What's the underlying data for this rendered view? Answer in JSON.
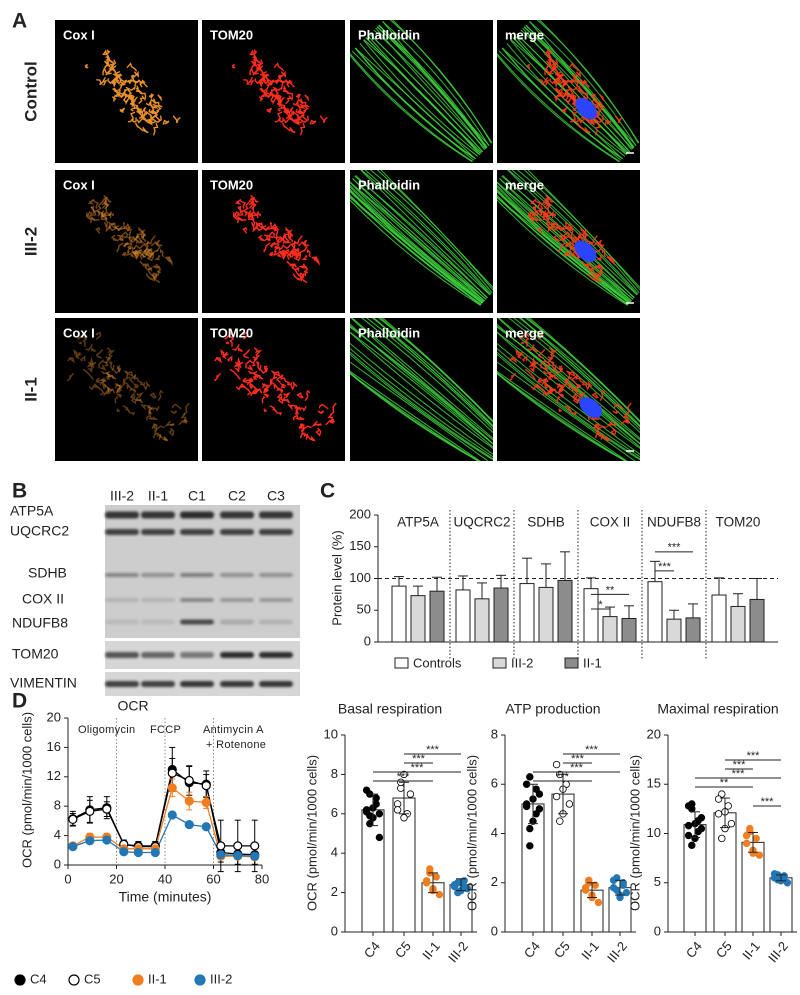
{
  "panel_labels": [
    "A",
    "B",
    "C",
    "D"
  ],
  "microscopy": {
    "rows": [
      "Control",
      "III-2",
      "II-1"
    ],
    "channels": [
      "Cox I",
      "TOM20",
      "Phalloidin",
      "merge"
    ]
  },
  "western_blot": {
    "lanes": [
      "III-2",
      "II-1",
      "C1",
      "C2",
      "C3"
    ],
    "proteins": [
      "ATP5A",
      "UQCRC2",
      "SDHB",
      "COX II",
      "NDUFB8",
      "TOM20",
      "VIMENTIN"
    ]
  },
  "chart_data": [
    {
      "type": "bar",
      "ylabel": "Protein level (%)",
      "categories": [
        "ATP5A",
        "UQCRC2",
        "SDHB",
        "COX II",
        "NDUFB8",
        "TOM20"
      ],
      "series": [
        {
          "name": "Controls",
          "color": "#ffffff",
          "values": [
            88,
            82,
            92,
            84,
            95,
            74
          ],
          "errors": [
            15,
            22,
            40,
            17,
            32,
            27
          ]
        },
        {
          "name": "III-2",
          "color": "#d9d9d9",
          "values": [
            73,
            68,
            86,
            40,
            36,
            56
          ],
          "errors": [
            15,
            25,
            37,
            15,
            14,
            20
          ]
        },
        {
          "name": "II-1",
          "color": "#8c8c8c",
          "values": [
            80,
            85,
            97,
            37,
            38,
            67
          ],
          "errors": [
            22,
            20,
            45,
            20,
            22,
            33
          ]
        }
      ],
      "ylim": [
        0,
        200
      ],
      "yticks": [
        0,
        50,
        100,
        150,
        200
      ],
      "reference_line": 100,
      "annotations": [
        "*",
        "**",
        "***",
        "***"
      ],
      "legend": "bottom"
    },
    {
      "type": "line",
      "title": "OCR",
      "xlabel": "Time (minutes)",
      "ylabel": "OCR (pmol/min/1000 cells)",
      "x": [
        2,
        9,
        16,
        23,
        29,
        36,
        43,
        50,
        57,
        63,
        70,
        77
      ],
      "series": [
        {
          "name": "C4",
          "color": "#000000",
          "values": [
            6.3,
            7.5,
            7.8,
            2.8,
            2.6,
            2.6,
            13,
            11.2,
            11,
            1.7,
            1.5,
            1.4
          ],
          "errors": [
            1,
            1.8,
            1.5,
            0.6,
            0.6,
            0.6,
            3,
            2.2,
            1.8,
            1.3,
            1.4,
            1.3
          ]
        },
        {
          "name": "C5",
          "color": "#000000",
          "fill": "#ffffff",
          "values": [
            6.2,
            7.3,
            7.6,
            2.8,
            2.5,
            2.5,
            12.5,
            11.5,
            10.8,
            2.6,
            2.6,
            2.6
          ],
          "errors": [
            0.8,
            1.5,
            1,
            0.5,
            0.5,
            0.5,
            2,
            2,
            1.5,
            3.5,
            3.5,
            3.5
          ]
        },
        {
          "name": "II-1",
          "color": "#f07d1f",
          "values": [
            2.6,
            3.8,
            3.8,
            2.2,
            2.2,
            2.2,
            10.5,
            8.7,
            8.5,
            1.2,
            1.2,
            1.1
          ],
          "errors": [
            0.3,
            0.5,
            0.5,
            0.3,
            0.3,
            0.3,
            1.2,
            1.2,
            0.8,
            0.3,
            0.3,
            0.3
          ]
        },
        {
          "name": "III-2",
          "color": "#2277b5",
          "values": [
            2.5,
            3.3,
            3.4,
            1.8,
            1.7,
            1.7,
            6.8,
            5.5,
            5.2,
            1.4,
            1.3,
            1.2
          ],
          "errors": [
            0.2,
            0.3,
            0.3,
            0.2,
            0.2,
            0.2,
            0.4,
            0.4,
            0.4,
            0.2,
            0.2,
            0.2
          ]
        }
      ],
      "xlim": [
        0,
        80
      ],
      "xticks": [
        0,
        20,
        40,
        60,
        80
      ],
      "ylim": [
        0,
        20
      ],
      "yticks": [
        0,
        4,
        8,
        12,
        16,
        20
      ],
      "injections": [
        20,
        40,
        60
      ],
      "annotations": [
        "Oligomycin",
        "FCCP",
        "Antimycin A",
        "+ Rotenone"
      ],
      "legend": "bottom"
    },
    {
      "type": "bar",
      "title": "Basal respiration",
      "ylabel": "OCR (pmol/min/1000 cells)",
      "categories": [
        "C4",
        "C5",
        "II-1",
        "III-2"
      ],
      "colors": [
        "#000000",
        "#ffffff",
        "#f07d1f",
        "#2277b5"
      ],
      "values": [
        6.2,
        6.8,
        2.5,
        2.4
      ],
      "errors": [
        0.8,
        0.8,
        0.5,
        0.3
      ],
      "points": [
        [
          6.2,
          7,
          5.8,
          6.5,
          6,
          7.2,
          5.5,
          6.3,
          6.8,
          4.8,
          6.1,
          5.9
        ],
        [
          6.5,
          7.3,
          8,
          6,
          7,
          6.2,
          7.6,
          5.8
        ],
        [
          2.5,
          3,
          2.2,
          2.8,
          1.9,
          2.6,
          3.2,
          2.1
        ],
        [
          2.3,
          2.5,
          2.1,
          2.6,
          2.2,
          2.4,
          2,
          2.5,
          2.3
        ]
      ],
      "ylim": [
        0,
        10
      ],
      "yticks": [
        0,
        2,
        4,
        6,
        8,
        10
      ],
      "annotations": [
        "***",
        "***",
        "***",
        "***"
      ]
    },
    {
      "type": "bar",
      "title": "ATP production",
      "ylabel": "OCR (pmol/min/1000 cells)",
      "categories": [
        "C4",
        "C5",
        "II-1",
        "III-2"
      ],
      "colors": [
        "#000000",
        "#ffffff",
        "#f07d1f",
        "#2277b5"
      ],
      "values": [
        5.2,
        5.6,
        1.7,
        1.8
      ],
      "errors": [
        0.8,
        0.8,
        0.3,
        0.3
      ],
      "points": [
        [
          5.2,
          6.3,
          4.5,
          5.8,
          5,
          6,
          3.5,
          5.4,
          4.8,
          5.6,
          5.1,
          4.2
        ],
        [
          5.5,
          6.4,
          4.8,
          6,
          5.2,
          6.8,
          4.5,
          5.8
        ],
        [
          1.7,
          2.1,
          1.4,
          1.9,
          1.2,
          1.8,
          2,
          1.5
        ],
        [
          1.8,
          2.2,
          1.5,
          1.9,
          1.6,
          2.1,
          1.7,
          1.4,
          2
        ]
      ],
      "ylim": [
        0,
        8
      ],
      "yticks": [
        0,
        2,
        4,
        6,
        8
      ],
      "annotations": [
        "***",
        "***",
        "***",
        "***"
      ]
    },
    {
      "type": "bar",
      "title": "Maximal respiration",
      "ylabel": "OCR (pmol/min/1000 cells)",
      "categories": [
        "C4",
        "C5",
        "II-1",
        "III-2"
      ],
      "colors": [
        "#000000",
        "#ffffff",
        "#f07d1f",
        "#2277b5"
      ],
      "values": [
        10.9,
        12.1,
        9.1,
        5.5
      ],
      "errors": [
        1.3,
        1.5,
        1,
        0.3
      ],
      "points": [
        [
          10.8,
          12.5,
          9.5,
          11.3,
          10.5,
          12.8,
          8.8,
          11,
          10.2,
          11.6,
          9.8,
          13
        ],
        [
          12,
          14,
          10.5,
          12.8,
          11,
          13.5,
          9.5,
          12.2
        ],
        [
          9,
          10.2,
          8,
          9.5,
          7.8,
          9.8,
          10.5,
          8.3
        ],
        [
          5.5,
          5.8,
          5.2,
          5.6,
          5,
          5.9,
          5.3,
          5.4,
          5.7
        ]
      ],
      "ylim": [
        0,
        20
      ],
      "yticks": [
        0,
        5,
        10,
        15,
        20
      ],
      "annotations": [
        "***",
        "***",
        "***",
        "**",
        "***"
      ]
    }
  ]
}
